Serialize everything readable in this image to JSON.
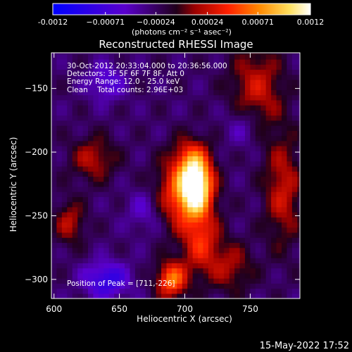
{
  "chart_data": {
    "type": "heatmap",
    "title": "Reconstructed RHESSI Image",
    "xlabel": "Heliocentric X (arcsec)",
    "ylabel": "Heliocentric Y (arcsec)",
    "xlim": [
      598,
      788
    ],
    "ylim": [
      -315,
      -122
    ],
    "x_ticks": [
      600,
      650,
      700,
      750
    ],
    "y_ticks": [
      -150,
      -200,
      -250,
      -300
    ],
    "colorbar": {
      "min": -0.0012,
      "max": 0.0012,
      "tick_values": [
        -0.0012,
        -0.00071,
        -0.00024,
        0.00024,
        0.00071,
        0.0012
      ],
      "tick_labels": [
        "-0.0012",
        "−0.00071",
        "−0.00024",
        "0.00024",
        "0.00071",
        "0.0012"
      ],
      "units_label": "(photons cm⁻² s⁻¹ asec⁻²)"
    },
    "annotations": [
      "30-Oct-2012 20:33:04.000 to 20:36:56.000",
      "Detectors: 3F 5F 6F 7F 8F, Att 0",
      "Energy Range: 12.0 - 25.0 keV",
      "Clean    Total counts: 2.96E+03"
    ],
    "peak_label": "Position of Peak = [711,-226]",
    "peak": [
      711,
      -226
    ],
    "sources": [
      {
        "x": 709,
        "y": -226,
        "amp": 0.00125,
        "sx": 8,
        "sy": 14
      },
      {
        "x": 698,
        "y": -233,
        "amp": 0.0008,
        "sx": 14,
        "sy": 18
      },
      {
        "x": 705,
        "y": -205,
        "amp": 0.00055,
        "sx": 10,
        "sy": 12
      },
      {
        "x": 690,
        "y": -300,
        "amp": 0.0009,
        "sx": 8,
        "sy": 10
      },
      {
        "x": 712,
        "y": -270,
        "amp": 0.0006,
        "sx": 10,
        "sy": 18
      },
      {
        "x": 755,
        "y": -150,
        "amp": 0.0005,
        "sx": 14,
        "sy": 24
      },
      {
        "x": 775,
        "y": -230,
        "amp": 0.0005,
        "sx": 10,
        "sy": 30
      },
      {
        "x": 630,
        "y": -205,
        "amp": 0.00045,
        "sx": 12,
        "sy": 12
      },
      {
        "x": 612,
        "y": -255,
        "amp": 0.00045,
        "sx": 8,
        "sy": 12
      },
      {
        "x": 735,
        "y": -290,
        "amp": 0.0004,
        "sx": 12,
        "sy": 14
      },
      {
        "x": 640,
        "y": -145,
        "amp": -0.0004,
        "sx": 10,
        "sy": 10
      },
      {
        "x": 640,
        "y": -300,
        "amp": -0.0006,
        "sx": 12,
        "sy": 10
      },
      {
        "x": 670,
        "y": -245,
        "amp": -0.0003,
        "sx": 10,
        "sy": 12
      },
      {
        "x": 745,
        "y": -180,
        "amp": -0.0003,
        "sx": 10,
        "sy": 12
      }
    ]
  },
  "footer": {
    "timestamp": "15-May-2022 17:52"
  }
}
